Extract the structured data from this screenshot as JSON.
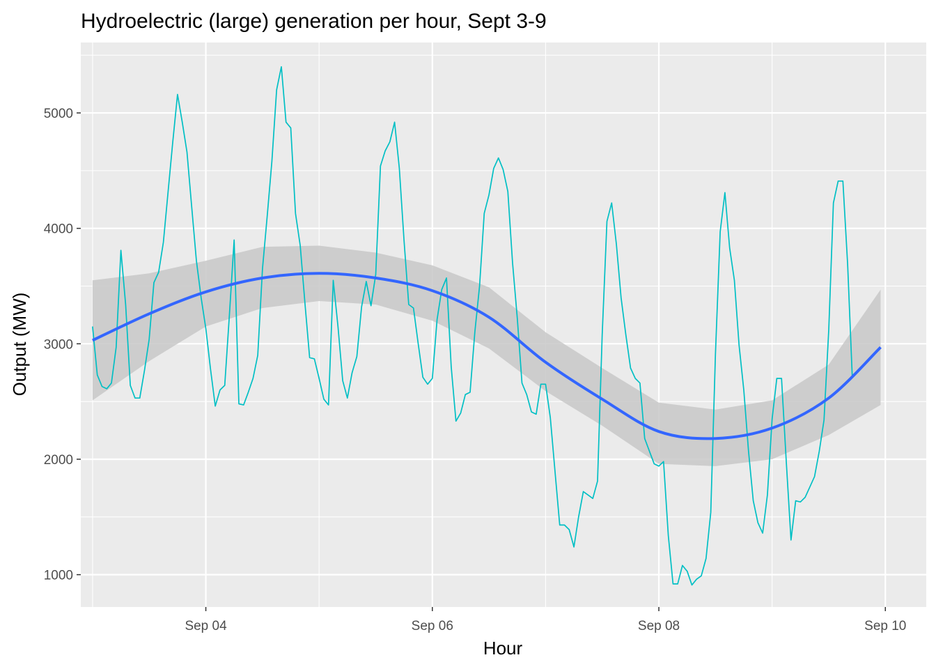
{
  "chart_data": {
    "type": "line",
    "title": "Hydroelectric (large) generation per hour, Sept 3-9",
    "xlabel": "Hour",
    "ylabel": "Output (MW)",
    "x_ticks": [
      "Sep 04",
      "Sep 06",
      "Sep 08",
      "Sep 10"
    ],
    "y_ticks": [
      1000,
      2000,
      3000,
      4000,
      5000
    ],
    "xlim": [
      "2023-09-02T21:30",
      "2023-09-10T08:40"
    ],
    "ylim": [
      720,
      5610
    ],
    "grid": true,
    "colors": {
      "panel": "#ebebeb",
      "grid": "#ffffff",
      "raw_line": "#00bfc4",
      "smooth_line": "#3366ff",
      "ribbon": "#c8c8c8"
    },
    "series": [
      {
        "x_unit": "hours since Sep 03 00:00",
        "x_start": 0,
        "x_step": 1,
        "values": [
          3150,
          2730,
          2630,
          2610,
          2660,
          2970,
          3810,
          3340,
          2640,
          2530,
          2530,
          2770,
          3040,
          3530,
          3620,
          3880,
          4320,
          4750,
          5160,
          4920,
          4660,
          4190,
          3720,
          3400,
          3130,
          2780,
          2460,
          2600,
          2640,
          3250,
          3900,
          2480,
          2470,
          2580,
          2700,
          2900,
          3650,
          4100,
          4580,
          5200,
          5400,
          4920,
          4870,
          4130,
          3850,
          3350,
          2880,
          2870,
          2700,
          2520,
          2470,
          3550,
          3150,
          2680,
          2530,
          2750,
          2890,
          3320,
          3540,
          3330,
          3600,
          4540,
          4670,
          4750,
          4920,
          4520,
          3900,
          3340,
          3310,
          3000,
          2710,
          2650,
          2700,
          3210,
          3470,
          3570,
          2800,
          2330,
          2400,
          2560,
          2580,
          3100,
          3500,
          4130,
          4290,
          4520,
          4610,
          4510,
          4320,
          3700,
          3220,
          2660,
          2560,
          2410,
          2390,
          2650,
          2650,
          2360,
          1890,
          1430,
          1430,
          1390,
          1240,
          1500,
          1720,
          1690,
          1660,
          1810,
          3080,
          4060,
          4220,
          3860,
          3400,
          3080,
          2790,
          2700,
          2660,
          2180,
          2070,
          1960,
          1940,
          1980,
          1340,
          920,
          920,
          1080,
          1030,
          910,
          960,
          990,
          1140,
          1540,
          2910,
          3970,
          4310,
          3830,
          3550,
          2990,
          2600,
          2070,
          1640,
          1450,
          1360,
          1690,
          2350,
          2700,
          2700,
          1980,
          1300,
          1640,
          1630,
          1670,
          1760,
          1850,
          2070,
          2340,
          3120,
          4220,
          4410,
          4410,
          3690,
          2710
        ]
      },
      {
        "name": "",
        "style": "smooth",
        "fit_x": [
          0,
          12,
          24,
          36,
          48,
          60,
          72,
          84,
          96,
          108,
          120,
          132,
          144,
          156,
          167
        ],
        "fit_y": [
          3030,
          3260,
          3450,
          3570,
          3610,
          3570,
          3460,
          3230,
          2840,
          2520,
          2240,
          2180,
          2270,
          2530,
          2970
        ],
        "ci_lower": [
          2510,
          2850,
          3150,
          3310,
          3370,
          3340,
          3200,
          2960,
          2590,
          2290,
          1960,
          1940,
          2000,
          2210,
          2470
        ],
        "ci_upper": [
          3550,
          3610,
          3720,
          3840,
          3850,
          3790,
          3680,
          3490,
          3100,
          2790,
          2490,
          2430,
          2510,
          2820,
          3470
        ]
      }
    ]
  }
}
